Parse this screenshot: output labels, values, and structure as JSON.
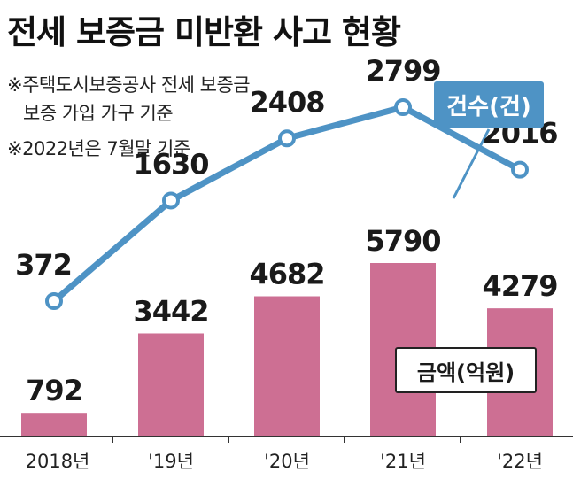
{
  "title": "전세 보증금 미반환 사고 현황",
  "notes": {
    "note1": "※주택도시보증공사 전세 보증금",
    "note2": "보증 가입 가구 기준",
    "note3": "※2022년은 7월말 기준"
  },
  "colors": {
    "bar": "#cd6f93",
    "line": "#4e93c5",
    "line_marker_fill": "#ffffff",
    "axis": "#333333"
  },
  "legend": {
    "line_series": "건수(건)",
    "bar_series": "금액(억원)"
  },
  "chart_data": {
    "type": "bar",
    "title": "전세 보증금 미반환 사고 현황",
    "categories": [
      "2018년",
      "'19년",
      "'20년",
      "'21년",
      "'22년"
    ],
    "series": [
      {
        "name": "금액(억원)",
        "type": "bar",
        "values": [
          792,
          3442,
          4682,
          5790,
          4279
        ]
      },
      {
        "name": "건수(건)",
        "type": "line",
        "values": [
          372,
          1630,
          2408,
          2799,
          2016
        ]
      }
    ],
    "bar_ylim": [
      0,
      5790
    ],
    "line_ylim": [
      372,
      2799
    ],
    "grid": false,
    "legend_position": "right"
  }
}
